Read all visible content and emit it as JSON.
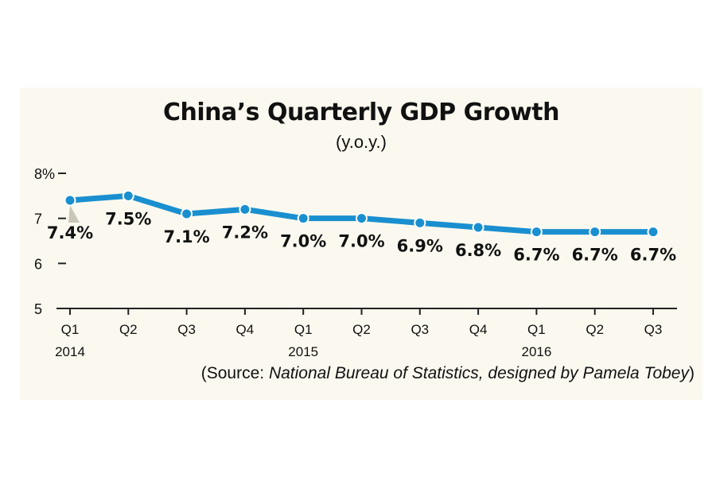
{
  "chart_data": {
    "type": "line",
    "title": "China’s Quarterly GDP Growth",
    "subtitle": "(y.o.y.)",
    "categories": [
      "Q1",
      "Q2",
      "Q3",
      "Q4",
      "Q1",
      "Q2",
      "Q3",
      "Q4",
      "Q1",
      "Q2",
      "Q3"
    ],
    "year_labels": [
      {
        "index": 0,
        "label": "2014"
      },
      {
        "index": 4,
        "label": "2015"
      },
      {
        "index": 8,
        "label": "2016"
      }
    ],
    "series": [
      {
        "values": [
          7.4,
          7.5,
          7.1,
          7.2,
          7.0,
          7.0,
          6.9,
          6.8,
          6.7,
          6.7,
          6.7
        ],
        "data_labels": [
          "7.4%",
          "7.5%",
          "7.1%",
          "7.2%",
          "7.0%",
          "7.0%",
          "6.9%",
          "6.8%",
          "6.7%",
          "6.7%",
          "6.7%"
        ],
        "color": "#1a8fd0"
      }
    ],
    "y_ticks": [
      {
        "value": 8,
        "label": "8%"
      },
      {
        "value": 7,
        "label": "7"
      },
      {
        "value": 6,
        "label": "6"
      },
      {
        "value": 5,
        "label": "5"
      }
    ],
    "ylim": [
      5,
      8
    ],
    "grid": false
  },
  "source": {
    "prefix": "(Source: ",
    "italic": "National Bureau of Statistics, designed by Pamela Tobey",
    "suffix": ")"
  },
  "colors": {
    "background": "#fbf9ef",
    "line": "#1a8fd0",
    "text": "#111111",
    "axis": "#222222"
  }
}
